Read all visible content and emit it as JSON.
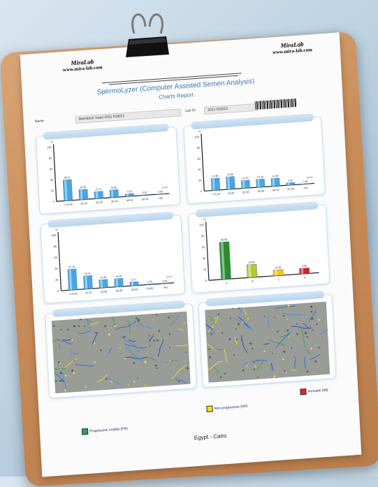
{
  "header": {
    "lab_name_left": "MiraLab",
    "lab_site_left": "www.mira-lab.com",
    "lab_name_right": "MiraLab",
    "lab_site_right": "www.mira-lab.com",
    "main_title": "SpermoLyzer (Computer Assisted Semen Analysis)",
    "sub_title": "Charts Report",
    "name_label": "Name",
    "name_value": "Mamdouh Saad 2021 018021",
    "lab_id_label": "Lab ID",
    "lab_id_value": "2021 018021"
  },
  "charts": [
    {
      "id": "progressive-velocity",
      "ymax": 100,
      "yticks": [
        "100",
        "80",
        "60",
        "40",
        "20",
        "0"
      ],
      "ytop_label": "%",
      "unit_label": "µm/s",
      "categories": [
        "<=5.05",
        "10-20",
        "20-30",
        "30-40",
        "40-50",
        "50-60",
        ">60"
      ],
      "values": [
        38.21,
        18.45,
        12.72,
        13.85,
        4.59,
        0.91,
        0.36
      ],
      "labels": [
        "38.21",
        "18.45",
        "12.72",
        "13.85",
        "4.59",
        "0.91",
        "0.36"
      ]
    },
    {
      "id": "path-velocity",
      "ymax": 100,
      "yticks": [
        "100",
        "80",
        "60",
        "40",
        "20",
        "0"
      ],
      "ytop_label": "%",
      "unit_label": "µm/s",
      "categories": [
        "<=5.05",
        "10-20",
        "20-30",
        "30-40",
        "40-50",
        "50-60",
        ">60"
      ],
      "values": [
        21.96,
        22.86,
        14.23,
        14.48,
        14.28,
        4.32,
        0.36
      ],
      "labels": [
        "21.96",
        "22.86",
        "14.23",
        "14.48",
        "14.28",
        "4.32",
        "0.36"
      ]
    },
    {
      "id": "path-velocity-b",
      "ymax": 100,
      "yticks": [
        "100",
        "80",
        "60",
        "40",
        "20",
        "0"
      ],
      "ytop_label": "%",
      "unit_label": "µm/s",
      "categories": [
        "<=5.05",
        "10-20",
        "20-30",
        "30-40",
        "40-50",
        "50-60",
        ">60"
      ],
      "values": [
        37.15,
        23.41,
        14.46,
        14.49,
        6.71,
        1.31,
        0.05
      ],
      "labels": [
        "37.15",
        "23.41",
        "14.46",
        "14.49",
        "6.71",
        "1.31",
        "0.05"
      ]
    },
    {
      "id": "grade-distribution",
      "ymax": 100,
      "yticks": [
        "100",
        "80",
        "60",
        "40",
        "20",
        "0"
      ],
      "ytop_label": "%",
      "categories": [
        "A",
        "B",
        "C",
        "D"
      ],
      "values": [
        66.69,
        23.08,
        10.33,
        9.9
      ],
      "labels": [
        "66.69",
        "23.08",
        "10.33",
        "9.90"
      ],
      "colors": [
        "#2e8b2e",
        "#b5c92a",
        "#f0c419",
        "#d92020"
      ]
    }
  ],
  "legend": {
    "progressive": {
      "label": "Progressive motility (PR)",
      "color": "#2aa84a"
    },
    "non_progressive": {
      "label": "Non progressive (NP)",
      "color": "#f2e21b"
    },
    "immotile": {
      "label": "Immotile (IM)",
      "color": "#e0262a"
    }
  },
  "footer": {
    "location": "Egypt - Cairo"
  }
}
